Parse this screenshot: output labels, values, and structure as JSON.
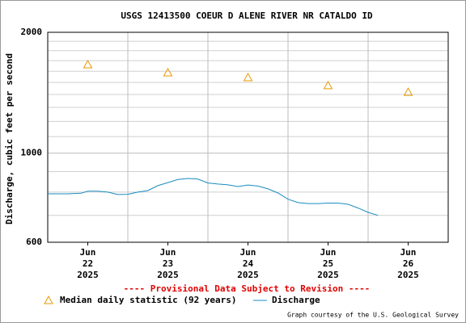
{
  "chart_data": {
    "type": "line",
    "title": "USGS 12413500 COEUR D ALENE RIVER NR CATALDO ID",
    "ylabel": "Discharge, cubic feet per second",
    "note": "---- Provisional Data Subject to Revision ----",
    "credit": "Graph courtesy of the U.S. Geological Survey",
    "log_y": true,
    "grid": true,
    "ylim": [
      600,
      2000
    ],
    "yticks": [
      600,
      1000,
      2000
    ],
    "yminorticks": [
      700,
      800,
      900,
      1100,
      1200,
      1300,
      1400,
      1500,
      1600,
      1700,
      1800,
      1900
    ],
    "xlim": [
      "2025-06-22T00:00",
      "2025-06-27T00:00"
    ],
    "xticks": [
      {
        "value": "2025-06-22T12:00",
        "label": [
          "Jun",
          "22",
          "2025"
        ]
      },
      {
        "value": "2025-06-23T12:00",
        "label": [
          "Jun",
          "23",
          "2025"
        ]
      },
      {
        "value": "2025-06-24T12:00",
        "label": [
          "Jun",
          "24",
          "2025"
        ]
      },
      {
        "value": "2025-06-25T12:00",
        "label": [
          "Jun",
          "25",
          "2025"
        ]
      },
      {
        "value": "2025-06-26T12:00",
        "label": [
          "Jun",
          "26",
          "2025"
        ]
      }
    ],
    "xgrid": [
      "2025-06-23T00:00",
      "2025-06-24T00:00",
      "2025-06-25T00:00",
      "2025-06-26T00:00"
    ],
    "series": [
      {
        "name": "Median daily statistic (92 years)",
        "type": "scatter",
        "marker": "triangle",
        "color": "#e89a00",
        "x": [
          "2025-06-22T12:00",
          "2025-06-23T12:00",
          "2025-06-24T12:00",
          "2025-06-25T12:00",
          "2025-06-26T12:00"
        ],
        "values": [
          1662,
          1587,
          1543,
          1474,
          1419
        ]
      },
      {
        "name": "Discharge",
        "type": "line",
        "color": "#1a8cc0",
        "x": [
          "2025-06-22T00:00",
          "2025-06-22T06:00",
          "2025-06-22T10:00",
          "2025-06-22T12:00",
          "2025-06-22T15:00",
          "2025-06-22T18:00",
          "2025-06-22T21:00",
          "2025-06-23T00:00",
          "2025-06-23T03:00",
          "2025-06-23T06:00",
          "2025-06-23T09:00",
          "2025-06-23T12:00",
          "2025-06-23T15:00",
          "2025-06-23T18:00",
          "2025-06-23T21:00",
          "2025-06-24T00:00",
          "2025-06-24T03:00",
          "2025-06-24T06:00",
          "2025-06-24T09:00",
          "2025-06-24T12:00",
          "2025-06-24T15:00",
          "2025-06-24T18:00",
          "2025-06-24T21:00",
          "2025-06-25T00:00",
          "2025-06-25T03:00",
          "2025-06-25T06:00",
          "2025-06-25T09:00",
          "2025-06-25T12:00",
          "2025-06-25T15:00",
          "2025-06-25T18:00",
          "2025-06-25T21:00",
          "2025-06-26T00:00",
          "2025-06-26T03:00"
        ],
        "values": [
          792,
          792,
          795,
          804,
          804,
          800,
          789,
          790,
          800,
          807,
          830,
          845,
          860,
          865,
          862,
          843,
          838,
          834,
          826,
          833,
          828,
          815,
          796,
          768,
          753,
          749,
          749,
          751,
          751,
          746,
          730,
          712,
          700
        ]
      }
    ]
  }
}
